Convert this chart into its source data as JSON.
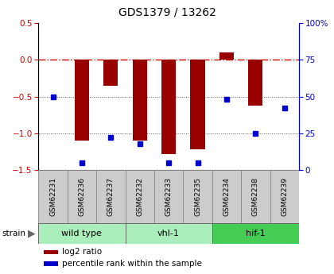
{
  "title": "GDS1379 / 13262",
  "samples": [
    "GSM62231",
    "GSM62236",
    "GSM62237",
    "GSM62232",
    "GSM62233",
    "GSM62235",
    "GSM62234",
    "GSM62238",
    "GSM62239"
  ],
  "log2_ratio": [
    0.0,
    -1.1,
    -0.35,
    -1.1,
    -1.28,
    -1.22,
    0.1,
    -0.62,
    0.0
  ],
  "percentile_rank": [
    50,
    5,
    22,
    18,
    5,
    5,
    48,
    25,
    42
  ],
  "strain_groups": [
    {
      "label": "wild type",
      "start": 0,
      "end": 3,
      "color": "#aaeebb"
    },
    {
      "label": "vhl-1",
      "start": 3,
      "end": 6,
      "color": "#aaeebb"
    },
    {
      "label": "hif-1",
      "start": 6,
      "end": 9,
      "color": "#44cc55"
    }
  ],
  "bar_color": "#990000",
  "dot_color": "#0000cc",
  "ylim_left": [
    -1.5,
    0.5
  ],
  "ylim_right": [
    0,
    100
  ],
  "hline_0_color": "#cc0000",
  "hline_dotted_color": "#555555",
  "plot_bg_color": "#ffffff",
  "sample_box_color": "#cccccc",
  "sample_box_edge": "#888888"
}
